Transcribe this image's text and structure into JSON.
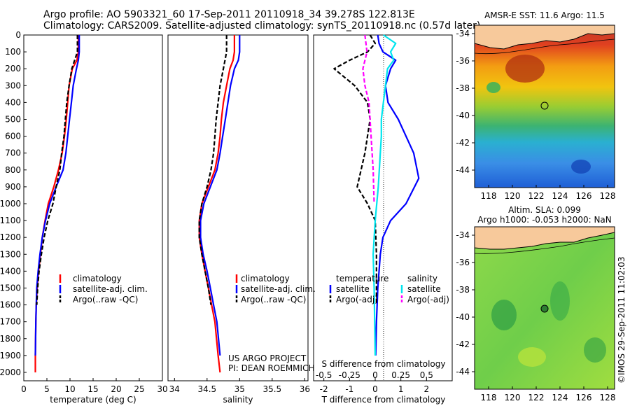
{
  "header": {
    "line1": "Argo profile: AO 5903321_60 17-Sep-2011 20110918_34 39.278S 122.813E",
    "line2": "Climatology: CARS2009. Satellite-adjusted climatology: synTS_20110918.nc (0.57d later)"
  },
  "annotations": {
    "project": "US ARGO PROJECT",
    "pi": "PI: DEAN ROEMMICH",
    "sst_title": "AMSR-E SST: 11.6 Argo: 11.5",
    "sla_line1": "Altim. SLA: 0.099",
    "sla_line2": "Argo h1000: -0.053 h2000: NaN",
    "credit": "©IMOS 29-Sep-2011 11:02:03"
  },
  "legends": {
    "clim": "climatology",
    "sat": "satellite-adj. clim.",
    "argo": "Argo(..raw -QC)",
    "diff_temp_title": "temperature",
    "diff_sal_title": "salinity",
    "diff_sat": "satellite",
    "diff_argo": "Argo(-adj)"
  },
  "colors": {
    "climatology": "#ff0000",
    "satellite": "#0000ff",
    "argo": "#000000",
    "sal_satellite": "#00e5ee",
    "sal_argo": "#ff00ff",
    "land": "#f7c99b"
  },
  "chart_data": [
    {
      "type": "line",
      "xlabel": "temperature (deg C)",
      "ylabel": "",
      "xlim": [
        0,
        30
      ],
      "ylim": [
        2050,
        0
      ],
      "xticks": [
        0,
        5,
        10,
        15,
        20,
        25,
        30
      ],
      "yticks": [
        0,
        100,
        200,
        300,
        400,
        500,
        600,
        700,
        800,
        900,
        1000,
        1100,
        1200,
        1300,
        1400,
        1500,
        1600,
        1700,
        1800,
        1900,
        2000
      ],
      "series": [
        {
          "name": "climatology",
          "x": [
            11.8,
            11.8,
            11.5,
            10.5,
            9.8,
            9.5,
            9.2,
            8.8,
            8.3,
            7.5,
            6.5,
            5.3,
            4.6,
            4.0,
            3.6,
            3.2,
            2.9,
            2.7,
            2.6,
            2.5,
            2.5
          ],
          "y": [
            0,
            100,
            150,
            200,
            300,
            400,
            500,
            600,
            700,
            800,
            900,
            1000,
            1100,
            1200,
            1300,
            1400,
            1500,
            1600,
            1700,
            1900,
            2000
          ]
        },
        {
          "name": "satellite-adj. clim.",
          "x": [
            12.0,
            12.0,
            11.8,
            11.4,
            10.7,
            10.3,
            9.9,
            9.5,
            9.1,
            8.5,
            7.0,
            5.6,
            4.7,
            4.0,
            3.5,
            3.1,
            2.8,
            2.7,
            2.6,
            2.5
          ],
          "y": [
            0,
            100,
            150,
            200,
            300,
            400,
            500,
            600,
            700,
            800,
            900,
            1000,
            1100,
            1200,
            1300,
            1400,
            1500,
            1600,
            1700,
            1900
          ]
        },
        {
          "name": "Argo(..raw -QC)",
          "x": [
            11.6,
            11.6,
            10.4,
            9.8,
            9.3,
            9.0,
            8.7,
            8.2,
            7.8,
            7.0,
            6.3,
            5.2,
            4.4,
            3.8,
            3.3,
            3.0,
            2.8
          ],
          "y": [
            0,
            100,
            200,
            300,
            400,
            500,
            600,
            700,
            800,
            900,
            1000,
            1100,
            1200,
            1300,
            1400,
            1500,
            1600
          ]
        }
      ]
    },
    {
      "type": "line",
      "xlabel": "salinity",
      "ylabel": "",
      "xlim": [
        33.9,
        36.05
      ],
      "ylim": [
        2050,
        0
      ],
      "xticks": [
        34,
        34.5,
        35,
        35.5,
        36
      ],
      "series": [
        {
          "name": "climatology",
          "x": [
            34.92,
            34.92,
            34.9,
            34.85,
            34.8,
            34.75,
            34.72,
            34.7,
            34.67,
            34.62,
            34.52,
            34.42,
            34.38,
            34.38,
            34.42,
            34.47,
            34.52,
            34.57,
            34.62,
            34.67,
            34.7
          ],
          "y": [
            0,
            100,
            150,
            200,
            300,
            400,
            500,
            600,
            700,
            800,
            900,
            1000,
            1100,
            1200,
            1300,
            1400,
            1500,
            1600,
            1700,
            1900,
            2000
          ]
        },
        {
          "name": "satellite-adj. clim.",
          "x": [
            35.0,
            35.0,
            34.98,
            34.92,
            34.86,
            34.82,
            34.78,
            34.74,
            34.7,
            34.65,
            34.55,
            34.45,
            34.4,
            34.4,
            34.44,
            34.5,
            34.55,
            34.6,
            34.65,
            34.7
          ],
          "y": [
            0,
            100,
            150,
            200,
            300,
            400,
            500,
            600,
            700,
            800,
            900,
            1000,
            1100,
            1200,
            1300,
            1400,
            1500,
            1600,
            1700,
            1900
          ]
        },
        {
          "name": "Argo(..raw -QC)",
          "x": [
            34.8,
            34.8,
            34.75,
            34.7,
            34.67,
            34.64,
            34.62,
            34.6,
            34.56,
            34.5,
            34.42,
            34.38,
            34.38,
            34.42,
            34.47,
            34.52,
            34.56
          ],
          "y": [
            0,
            100,
            200,
            300,
            400,
            500,
            600,
            700,
            800,
            900,
            1000,
            1100,
            1200,
            1300,
            1400,
            1500,
            1600
          ]
        }
      ]
    },
    {
      "type": "line",
      "xlabel": "T difference from climatology",
      "x2label": "S difference from climatology",
      "xlim": [
        -2.4,
        3.0
      ],
      "ylim": [
        2050,
        0
      ],
      "xticks": [
        -2,
        -1,
        0,
        1,
        2
      ],
      "x2ticks": [
        -0.5,
        -0.25,
        0,
        0.25,
        0.5
      ],
      "series": [
        {
          "name": "temperature satellite",
          "x": [
            0.1,
            0.15,
            0.3,
            0.8,
            0.6,
            0.4,
            0.5,
            0.9,
            1.2,
            1.5,
            1.7,
            1.2,
            0.6,
            0.3,
            0.2,
            0.15,
            0.1,
            0.05,
            0.02
          ],
          "y": [
            0,
            50,
            100,
            150,
            200,
            300,
            400,
            500,
            600,
            700,
            850,
            1000,
            1100,
            1200,
            1300,
            1400,
            1500,
            1700,
            1900
          ]
        },
        {
          "name": "temperature Argo(-adj)",
          "x": [
            -0.2,
            0.0,
            -0.3,
            -1.0,
            -1.6,
            -0.8,
            -0.3,
            -0.2,
            -0.3,
            -0.4,
            -0.7,
            -0.3,
            0.0,
            0.05,
            0.05
          ],
          "y": [
            0,
            50,
            100,
            150,
            200,
            300,
            400,
            500,
            600,
            700,
            900,
            1000,
            1100,
            1300,
            1600
          ]
        },
        {
          "name": "salinity satellite",
          "x": [
            0.08,
            0.2,
            0.15,
            0.18,
            0.12,
            0.1,
            0.08,
            0.06,
            0.06,
            0.05,
            0.03,
            0.0,
            -0.02,
            -0.01,
            0.0
          ],
          "y": [
            0,
            50,
            100,
            150,
            200,
            300,
            400,
            500,
            600,
            700,
            900,
            1100,
            1300,
            1500,
            1900
          ]
        },
        {
          "name": "salinity Argo(-adj)",
          "x": [
            -0.1,
            -0.08,
            -0.12,
            -0.1,
            -0.06,
            -0.04,
            -0.02,
            -0.01
          ],
          "y": [
            0,
            100,
            200,
            300,
            400,
            600,
            800,
            1000
          ]
        }
      ]
    }
  ],
  "maps": [
    {
      "title": "AMSR-E SST: 11.6 Argo: 11.5",
      "xticks": [
        "118",
        "120",
        "122",
        "124",
        "126",
        "128"
      ],
      "yticks": [
        "-34",
        "-36",
        "-38",
        "-40",
        "-42",
        "-44"
      ]
    },
    {
      "title": "Altim. SLA: 0.099",
      "xticks": [
        "118",
        "120",
        "122",
        "124",
        "126",
        "128"
      ],
      "yticks": [
        "-34",
        "-36",
        "-38",
        "-40",
        "-42",
        "-44"
      ]
    }
  ]
}
